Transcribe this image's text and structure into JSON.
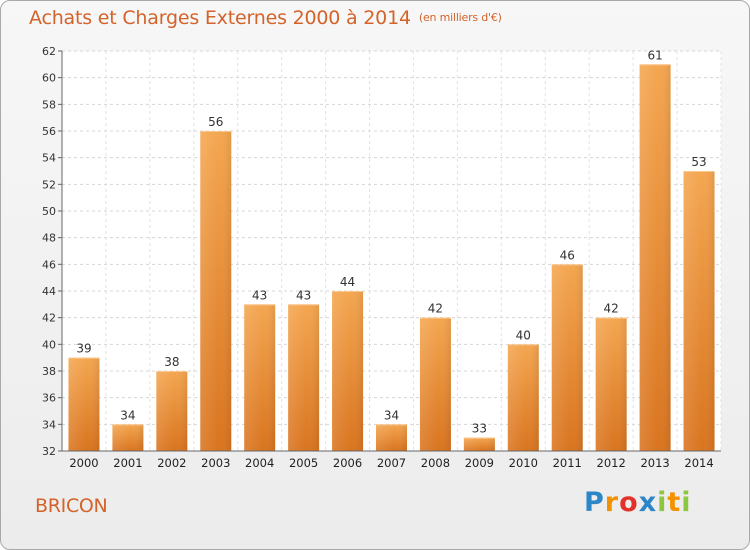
{
  "chart_data": {
    "type": "bar",
    "title": "Achats et Charges Externes 2000 à 2014",
    "unit_label": "(en milliers d'€)",
    "xlabel": "",
    "ylabel": "",
    "categories": [
      "2000",
      "2001",
      "2002",
      "2003",
      "2004",
      "2005",
      "2006",
      "2007",
      "2008",
      "2009",
      "2010",
      "2011",
      "2012",
      "2013",
      "2014"
    ],
    "values": [
      39,
      34,
      38,
      56,
      43,
      43,
      44,
      34,
      42,
      33,
      40,
      46,
      42,
      61,
      53
    ],
    "ylim": [
      32,
      62
    ],
    "yticks": [
      32,
      34,
      36,
      38,
      40,
      42,
      44,
      46,
      48,
      50,
      52,
      54,
      56,
      58,
      60,
      62
    ],
    "grid": true,
    "legend": "none",
    "bar_color": "#e8852f"
  },
  "footer": {
    "commune": "BRICON",
    "brand_letters": [
      "P",
      "r",
      "o",
      "x",
      "i",
      "t",
      "i"
    ],
    "brand_colors": [
      "#2c86c8",
      "#f29200",
      "#e4322b",
      "#2c86c8",
      "#8dc63f",
      "#f29200",
      "#8dc63f"
    ]
  }
}
